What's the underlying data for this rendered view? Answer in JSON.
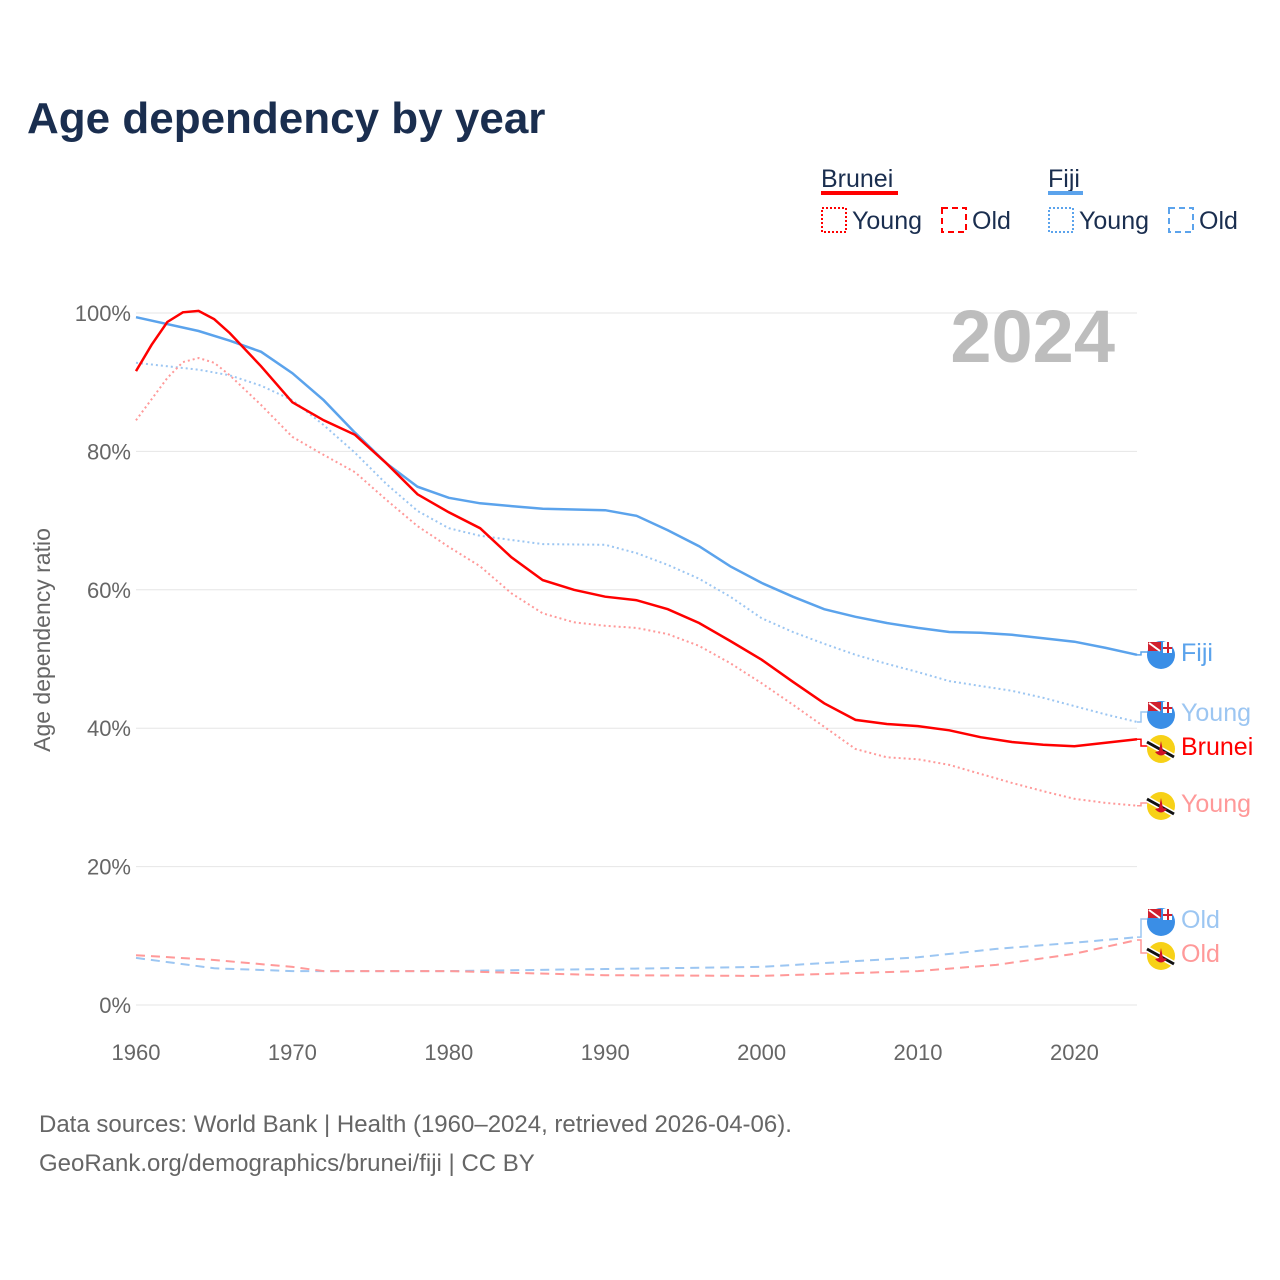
{
  "title": "Age dependency by year",
  "year_watermark": "2024",
  "legend": {
    "groups": [
      {
        "country": "Brunei",
        "color": "#ff0000",
        "items": [
          "Young",
          "Old"
        ]
      },
      {
        "country": "Fiji",
        "color": "#5ba3ec",
        "items": [
          "Young",
          "Old"
        ]
      }
    ]
  },
  "footer": {
    "line1": "Data sources: World Bank | Health (1960–2024, retrieved 2026-04-06).",
    "line2": "GeoRank.org/demographics/brunei/fiji | CC BY"
  },
  "chart_data": {
    "type": "line",
    "title": "Age dependency by year",
    "xlabel": "",
    "ylabel": "Age dependency ratio",
    "xlim": [
      1960,
      2024
    ],
    "ylim": [
      0,
      100
    ],
    "xticks": [
      "1960",
      "1970",
      "1980",
      "1990",
      "2000",
      "2010",
      "2020"
    ],
    "yticks": [
      "0%",
      "20%",
      "40%",
      "60%",
      "80%",
      "100%"
    ],
    "grid": true,
    "legend_position": "top-right",
    "series": [
      {
        "name": "Fiji",
        "label": "Fiji",
        "color": "#5ba3ec",
        "dash": "solid",
        "flag": "fiji",
        "x": [
          1960,
          1964,
          1966,
          1968,
          1970,
          1972,
          1974,
          1976,
          1978,
          1980,
          1982,
          1984,
          1986,
          1990,
          1992,
          1994,
          1996,
          1998,
          2000,
          2002,
          2004,
          2006,
          2008,
          2010,
          2012,
          2014,
          2016,
          2018,
          2020,
          2022,
          2024
        ],
        "y": [
          99.4,
          97.4,
          96,
          94.4,
          91.3,
          87.4,
          82.7,
          78.3,
          74.9,
          73.3,
          72.5,
          72.1,
          71.7,
          71.5,
          70.7,
          68.6,
          66.3,
          63.4,
          61,
          59,
          57.2,
          56.1,
          55.2,
          54.5,
          53.9,
          53.8,
          53.5,
          53,
          52.5,
          51.6,
          50.6
        ]
      },
      {
        "name": "Fiji Young",
        "label": "Young",
        "color": "#9cc6f2",
        "dash": "dotted",
        "flag": "fiji",
        "x": [
          1960,
          1964,
          1966,
          1968,
          1970,
          1972,
          1974,
          1976,
          1978,
          1980,
          1982,
          1986,
          1990,
          1992,
          1994,
          1996,
          1998,
          2000,
          2002,
          2004,
          2006,
          2008,
          2010,
          2012,
          2014,
          2016,
          2018,
          2020,
          2022,
          2024
        ],
        "y": [
          92.8,
          91.8,
          91,
          89.5,
          87.4,
          83.8,
          79.8,
          75.3,
          71.4,
          68.9,
          67.8,
          66.6,
          66.5,
          65.3,
          63.6,
          61.6,
          59,
          55.9,
          53.9,
          52.2,
          50.6,
          49.3,
          48.1,
          46.8,
          46.1,
          45.4,
          44.4,
          43.2,
          42,
          40.9
        ]
      },
      {
        "name": "Brunei",
        "label": "Brunei",
        "color": "#ff0000",
        "dash": "solid",
        "flag": "brunei",
        "x": [
          1960,
          1961,
          1962,
          1963,
          1964,
          1965,
          1966,
          1968,
          1970,
          1972,
          1974,
          1976,
          1978,
          1980,
          1982,
          1984,
          1986,
          1988,
          1990,
          1992,
          1994,
          1996,
          1998,
          2000,
          2002,
          2004,
          2006,
          2008,
          2010,
          2012,
          2014,
          2016,
          2018,
          2020,
          2022,
          2024
        ],
        "y": [
          91.6,
          95.4,
          98.7,
          100.1,
          100.3,
          99.1,
          97.1,
          92.3,
          87.1,
          84.5,
          82.4,
          78.3,
          73.8,
          71.2,
          68.9,
          64.7,
          61.4,
          60,
          59,
          58.5,
          57.2,
          55.2,
          52.6,
          49.9,
          46.7,
          43.6,
          41.2,
          40.6,
          40.3,
          39.7,
          38.7,
          38,
          37.6,
          37.4,
          37.9,
          38.4
        ]
      },
      {
        "name": "Brunei Young",
        "label": "Young",
        "color": "#ff9999",
        "dash": "dotted",
        "flag": "brunei",
        "x": [
          1960,
          1962,
          1963,
          1964,
          1965,
          1966,
          1968,
          1970,
          1972,
          1974,
          1976,
          1978,
          1980,
          1982,
          1984,
          1986,
          1988,
          1990,
          1992,
          1994,
          1996,
          1998,
          2000,
          2002,
          2004,
          2006,
          2008,
          2010,
          2012,
          2014,
          2016,
          2018,
          2020,
          2022,
          2024
        ],
        "y": [
          84.5,
          90.6,
          92.9,
          93.5,
          92.8,
          91,
          86.7,
          82.1,
          79.5,
          77,
          73,
          69.2,
          66.2,
          63.4,
          59.5,
          56.6,
          55.3,
          54.8,
          54.5,
          53.6,
          51.9,
          49.4,
          46.5,
          43.4,
          40.2,
          37,
          35.8,
          35.5,
          34.7,
          33.4,
          32.1,
          30.9,
          29.8,
          29.2,
          28.8
        ]
      },
      {
        "name": "Fiji Old",
        "label": "Old",
        "color": "#9cc6f2",
        "dash": "dashed",
        "flag": "fiji",
        "x": [
          1960,
          1965,
          1970,
          1980,
          1990,
          2000,
          2010,
          2015,
          2020,
          2024
        ],
        "y": [
          6.8,
          5.3,
          4.9,
          4.9,
          5.2,
          5.5,
          6.9,
          8.1,
          9,
          9.8
        ]
      },
      {
        "name": "Brunei Old",
        "label": "Old",
        "color": "#ff9999",
        "dash": "dashed",
        "flag": "brunei",
        "x": [
          1960,
          1965,
          1970,
          1972,
          1980,
          1990,
          2000,
          2010,
          2015,
          2020,
          2024
        ],
        "y": [
          7.2,
          6.5,
          5.5,
          4.9,
          4.9,
          4.3,
          4.2,
          4.9,
          5.8,
          7.4,
          9.4
        ]
      }
    ]
  }
}
